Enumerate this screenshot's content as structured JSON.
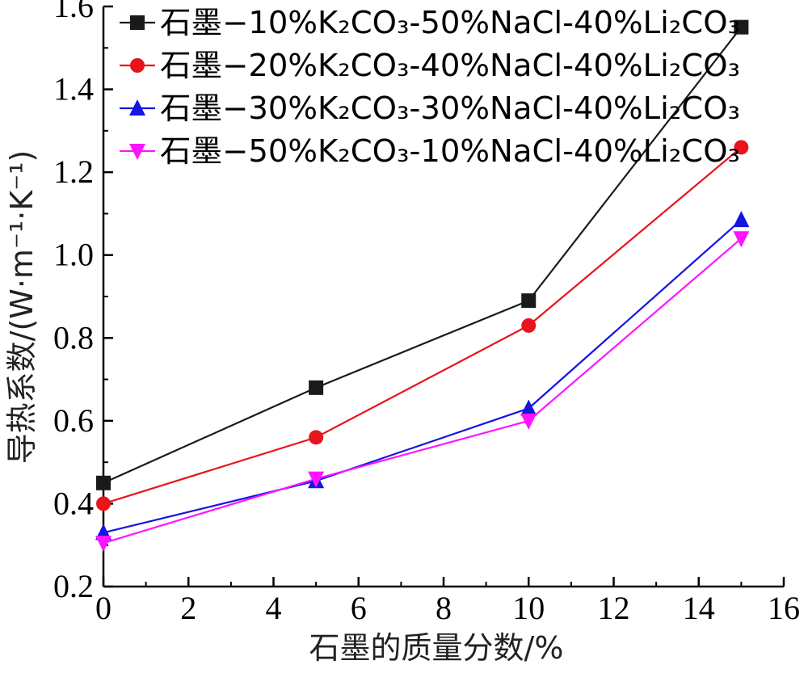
{
  "chart_data": {
    "type": "line",
    "x": [
      0,
      5,
      10,
      15
    ],
    "xlim": [
      0,
      16
    ],
    "ylim": [
      0.2,
      1.6
    ],
    "xticks": [
      0,
      2,
      4,
      6,
      8,
      10,
      12,
      14,
      16
    ],
    "yticks": [
      0.2,
      0.4,
      0.6,
      0.8,
      1.0,
      1.2,
      1.4,
      1.6
    ],
    "xtick_labels": [
      "0",
      "2",
      "4",
      "6",
      "8",
      "10",
      "12",
      "14",
      "16"
    ],
    "ytick_labels": [
      "0.2",
      "0.4",
      "0.6",
      "0.8",
      "1.0",
      "1.2",
      "1.4",
      "1.6"
    ],
    "xlabel": "石墨的质量分数/%",
    "ylabel": "导热系数/(W·m⁻¹·K⁻¹)",
    "legend_position": "top-left",
    "grid": false,
    "series": [
      {
        "name": "石墨−10%K₂CO₃-50%NaCl-40%Li₂CO₃",
        "values": [
          0.45,
          0.68,
          0.89,
          1.55
        ],
        "color": "#1a1a1a",
        "marker": "square"
      },
      {
        "name": "石墨−20%K₂CO₃-40%NaCl-40%Li₂CO₃",
        "values": [
          0.4,
          0.56,
          0.83,
          1.26
        ],
        "color": "#e8141c",
        "marker": "circle"
      },
      {
        "name": "石墨−30%K₂CO₃-30%NaCl-40%Li₂CO₃",
        "values": [
          0.33,
          0.455,
          0.63,
          1.085
        ],
        "color": "#1515e0",
        "marker": "triangle-up"
      },
      {
        "name": "石墨−50%K₂CO₃-10%NaCl-40%Li₂CO₃",
        "values": [
          0.305,
          0.46,
          0.6,
          1.04
        ],
        "color": "#ff14ff",
        "marker": "triangle-down"
      }
    ]
  }
}
